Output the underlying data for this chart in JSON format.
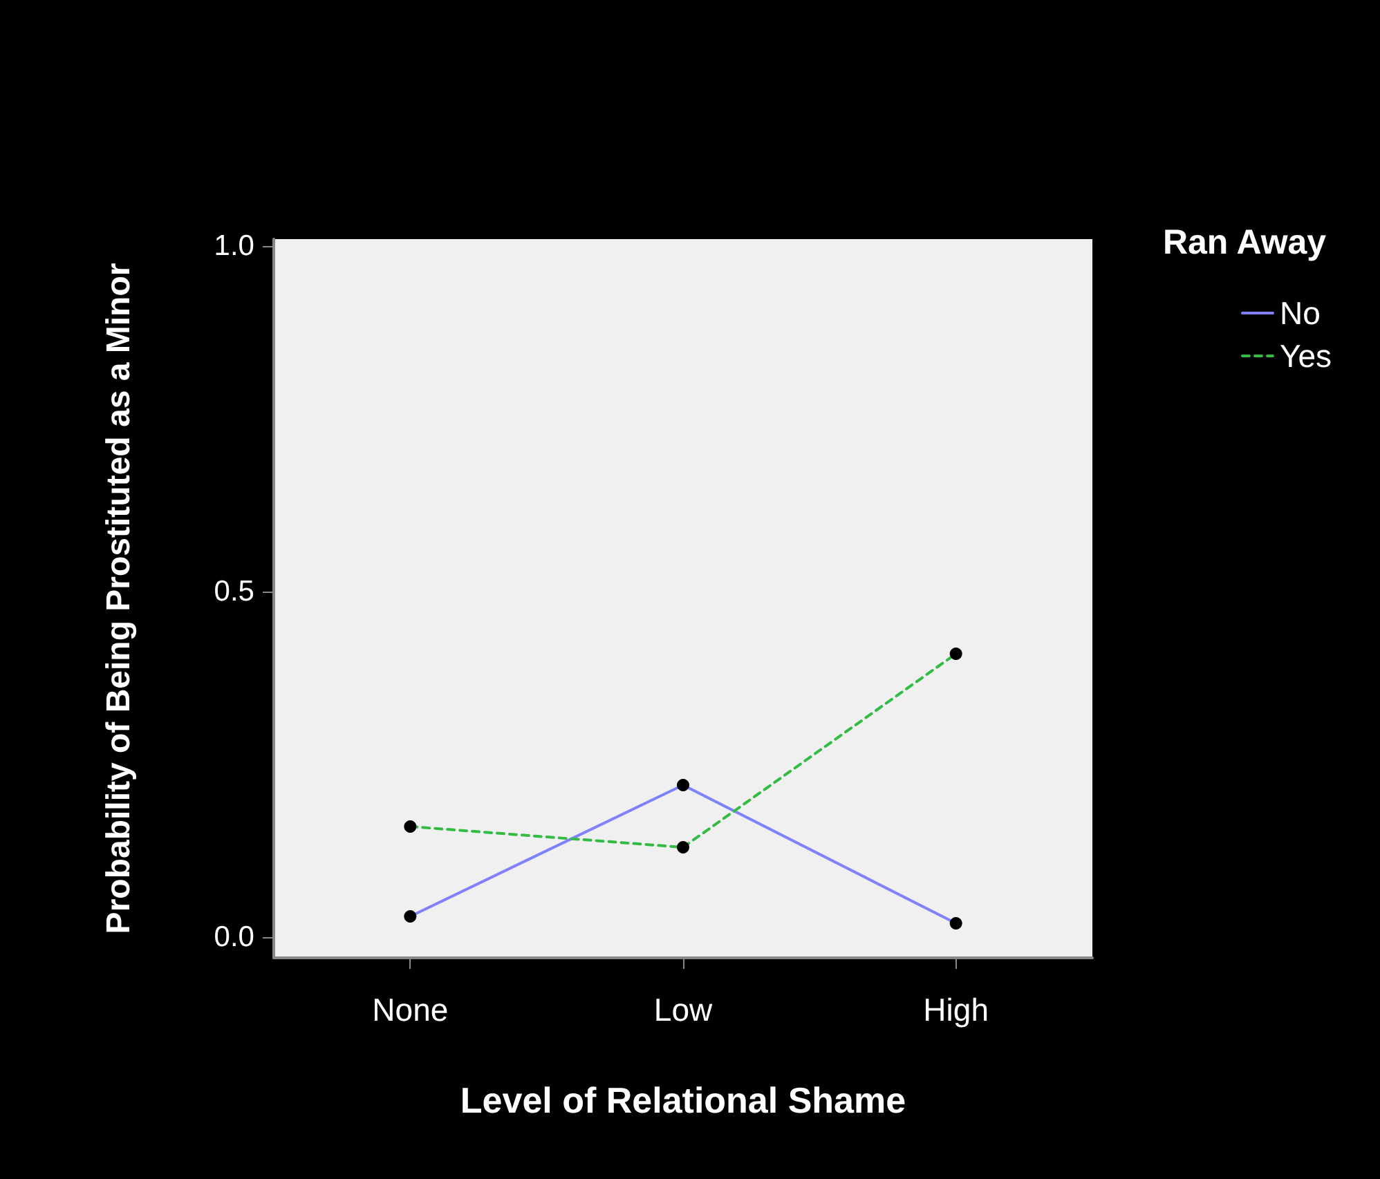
{
  "chart_data": {
    "type": "line",
    "xlabel": "Level of Relational Shame",
    "ylabel": "Probability of Being Prostituted as a Minor",
    "legend_title": "Ran Away",
    "categories": [
      "None",
      "Low",
      "High"
    ],
    "series": [
      {
        "name": "No",
        "color": "#8080ff",
        "line_style": "solid",
        "values": [
          0.03,
          0.22,
          0.02
        ]
      },
      {
        "name": "Yes",
        "color": "#33bb44",
        "line_style": "dashed",
        "values": [
          0.16,
          0.13,
          0.41
        ]
      }
    ],
    "ylim": [
      -0.03,
      1.01
    ],
    "yticks": [
      {
        "value": 0,
        "label": "0.0"
      },
      {
        "value": 0.5,
        "label": "0.5"
      },
      {
        "value": 1,
        "label": "1.0"
      }
    ],
    "marker": "circle",
    "legend": "top right",
    "grid": false
  }
}
